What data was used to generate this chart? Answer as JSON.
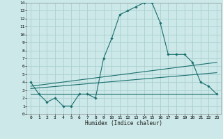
{
  "xlabel": "Humidex (Indice chaleur)",
  "ylabel": "",
  "bg_color": "#cce8e8",
  "grid_color": "#aacfcf",
  "line_color": "#1a6e6e",
  "xlim": [
    -0.5,
    23.5
  ],
  "ylim": [
    0,
    14
  ],
  "xticks": [
    0,
    1,
    2,
    3,
    4,
    5,
    6,
    7,
    8,
    9,
    10,
    11,
    12,
    13,
    14,
    15,
    16,
    17,
    18,
    19,
    20,
    21,
    22,
    23
  ],
  "yticks": [
    0,
    1,
    2,
    3,
    4,
    5,
    6,
    7,
    8,
    9,
    10,
    11,
    12,
    13,
    14
  ],
  "series1_x": [
    0,
    1,
    2,
    3,
    4,
    5,
    6,
    7,
    8,
    9,
    10,
    11,
    12,
    13,
    14,
    15,
    16,
    17,
    18,
    19,
    20,
    21,
    22,
    23
  ],
  "series1_y": [
    4.0,
    2.5,
    1.5,
    2.0,
    1.0,
    1.0,
    2.5,
    2.5,
    2.0,
    7.0,
    9.5,
    12.5,
    13.0,
    13.5,
    14.0,
    14.0,
    11.5,
    7.5,
    7.5,
    7.5,
    6.5,
    4.0,
    3.5,
    2.5
  ],
  "series2_x": [
    0,
    23
  ],
  "series2_y": [
    3.5,
    6.5
  ],
  "series3_x": [
    0,
    23
  ],
  "series3_y": [
    3.2,
    5.2
  ],
  "series4_x": [
    0,
    23
  ],
  "series4_y": [
    2.5,
    2.5
  ]
}
